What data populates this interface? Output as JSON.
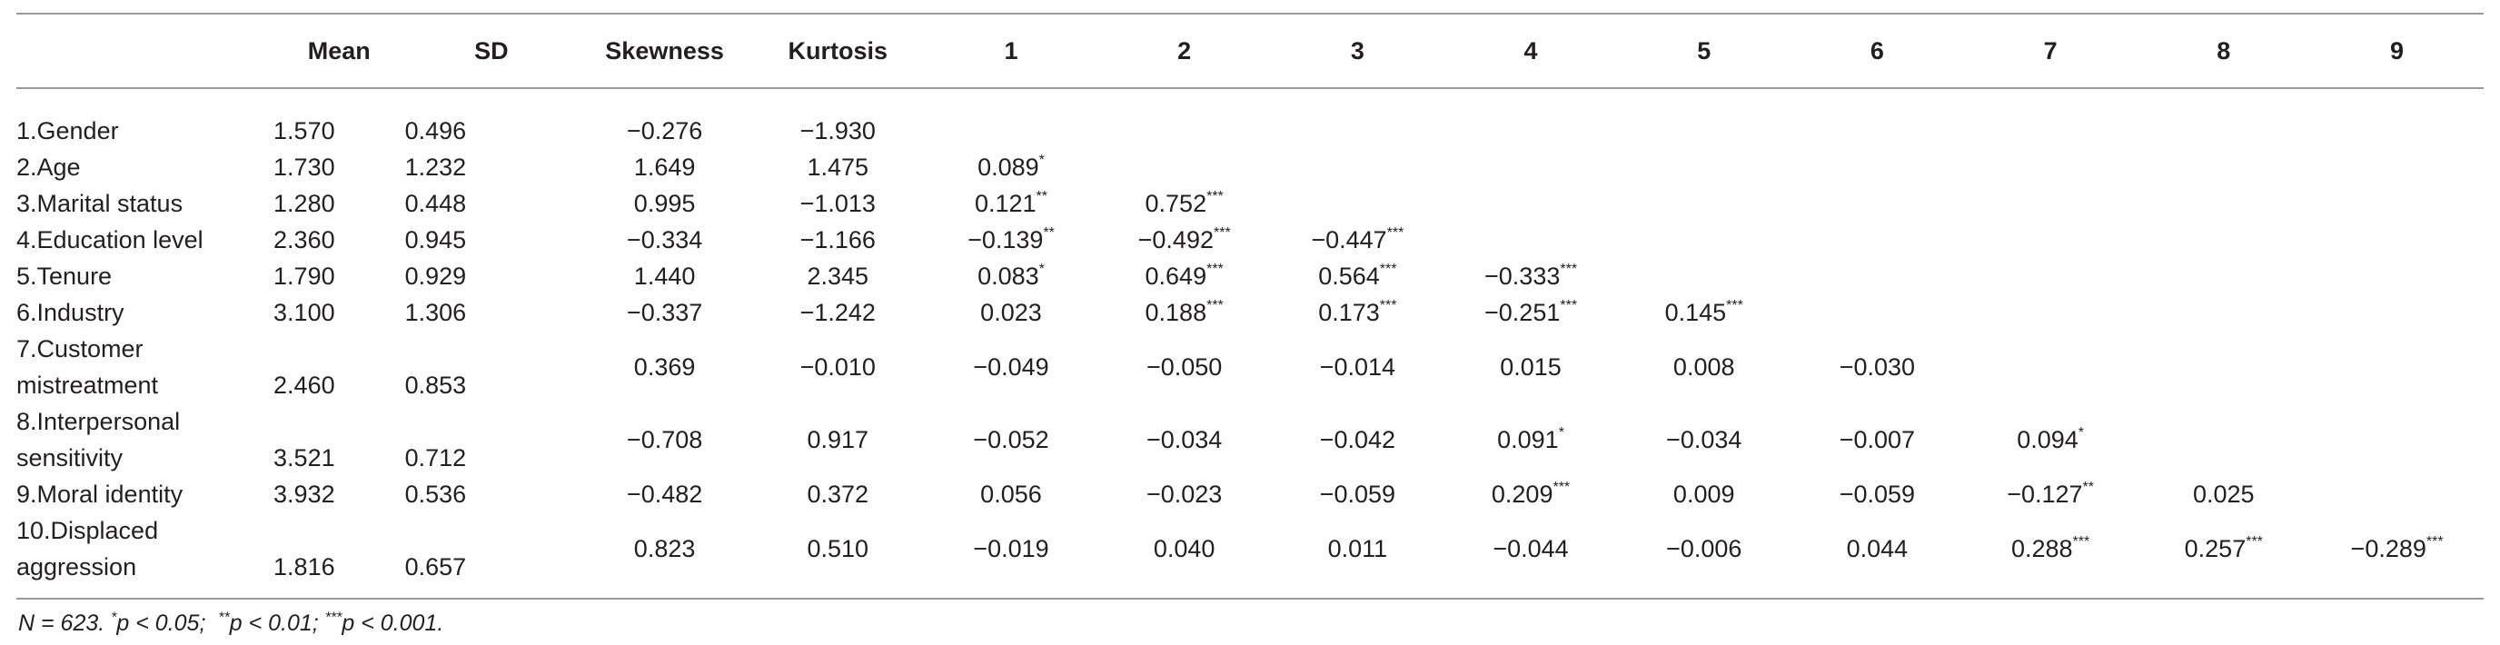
{
  "table": {
    "headers": [
      "",
      "Mean",
      "SD",
      "Skewness",
      "Kurtosis",
      "1",
      "2",
      "3",
      "4",
      "5",
      "6",
      "7",
      "8",
      "9"
    ],
    "rows": [
      {
        "label": [
          "1.Gender"
        ],
        "mean": "1.570",
        "sd": "0.496",
        "skew": "−0.276",
        "kurt": "−1.930",
        "corr": []
      },
      {
        "label": [
          "2.Age"
        ],
        "mean": "1.730",
        "sd": "1.232",
        "skew": "1.649",
        "kurt": "1.475",
        "corr": [
          {
            "v": "0.089",
            "s": "*"
          }
        ]
      },
      {
        "label": [
          "3.Marital status"
        ],
        "mean": "1.280",
        "sd": "0.448",
        "skew": "0.995",
        "kurt": "−1.013",
        "corr": [
          {
            "v": "0.121",
            "s": "**"
          },
          {
            "v": "0.752",
            "s": "***"
          }
        ]
      },
      {
        "label": [
          "4.Education level"
        ],
        "mean": "2.360",
        "sd": "0.945",
        "skew": "−0.334",
        "kurt": "−1.166",
        "corr": [
          {
            "v": "−0.139",
            "s": "**"
          },
          {
            "v": "−0.492",
            "s": "***"
          },
          {
            "v": "−0.447",
            "s": "***"
          }
        ]
      },
      {
        "label": [
          "5.Tenure"
        ],
        "mean": "1.790",
        "sd": "0.929",
        "skew": "1.440",
        "kurt": "2.345",
        "corr": [
          {
            "v": "0.083",
            "s": "*"
          },
          {
            "v": "0.649",
            "s": "***"
          },
          {
            "v": "0.564",
            "s": "***"
          },
          {
            "v": "−0.333",
            "s": "***"
          }
        ]
      },
      {
        "label": [
          "6.Industry"
        ],
        "mean": "3.100",
        "sd": "1.306",
        "skew": "−0.337",
        "kurt": "−1.242",
        "corr": [
          {
            "v": "0.023",
            "s": ""
          },
          {
            "v": "0.188",
            "s": "***"
          },
          {
            "v": "0.173",
            "s": "***"
          },
          {
            "v": "−0.251",
            "s": "***"
          },
          {
            "v": "0.145",
            "s": "***"
          }
        ]
      },
      {
        "label": [
          "7.Customer",
          "mistreatment"
        ],
        "mean": "2.460",
        "sd": "0.853",
        "skew": "0.369",
        "kurt": "−0.010",
        "corr": [
          {
            "v": "−0.049",
            "s": ""
          },
          {
            "v": "−0.050",
            "s": ""
          },
          {
            "v": "−0.014",
            "s": ""
          },
          {
            "v": "0.015",
            "s": ""
          },
          {
            "v": "0.008",
            "s": ""
          },
          {
            "v": "−0.030",
            "s": ""
          }
        ]
      },
      {
        "label": [
          "8.Interpersonal",
          "sensitivity"
        ],
        "mean": "3.521",
        "sd": "0.712",
        "skew": "−0.708",
        "kurt": "0.917",
        "corr": [
          {
            "v": "−0.052",
            "s": ""
          },
          {
            "v": "−0.034",
            "s": ""
          },
          {
            "v": "−0.042",
            "s": ""
          },
          {
            "v": "0.091",
            "s": "*"
          },
          {
            "v": "−0.034",
            "s": ""
          },
          {
            "v": "−0.007",
            "s": ""
          },
          {
            "v": "0.094",
            "s": "*"
          }
        ]
      },
      {
        "label": [
          "9.Moral identity"
        ],
        "mean": "3.932",
        "sd": "0.536",
        "skew": "−0.482",
        "kurt": "0.372",
        "corr": [
          {
            "v": "0.056",
            "s": ""
          },
          {
            "v": "−0.023",
            "s": ""
          },
          {
            "v": "−0.059",
            "s": ""
          },
          {
            "v": "0.209",
            "s": "***"
          },
          {
            "v": "0.009",
            "s": ""
          },
          {
            "v": "−0.059",
            "s": ""
          },
          {
            "v": "−0.127",
            "s": "**"
          },
          {
            "v": "0.025",
            "s": ""
          }
        ]
      },
      {
        "label": [
          "10.Displaced",
          "aggression"
        ],
        "mean": "1.816",
        "sd": "0.657",
        "skew": "0.823",
        "kurt": "0.510",
        "corr": [
          {
            "v": "−0.019",
            "s": ""
          },
          {
            "v": "0.040",
            "s": ""
          },
          {
            "v": "0.011",
            "s": ""
          },
          {
            "v": "−0.044",
            "s": ""
          },
          {
            "v": "−0.006",
            "s": ""
          },
          {
            "v": "0.044",
            "s": ""
          },
          {
            "v": "0.288",
            "s": "***"
          },
          {
            "v": "0.257",
            "s": "***"
          },
          {
            "v": "−0.289",
            "s": "***"
          }
        ]
      }
    ]
  },
  "note": {
    "n": "N = 623.",
    "p1_sym": "*",
    "p1": "p < 0.05;",
    "p2_sym": "**",
    "p2": "p < 0.01;",
    "p3_sym": "***",
    "p3": "p < 0.001."
  }
}
